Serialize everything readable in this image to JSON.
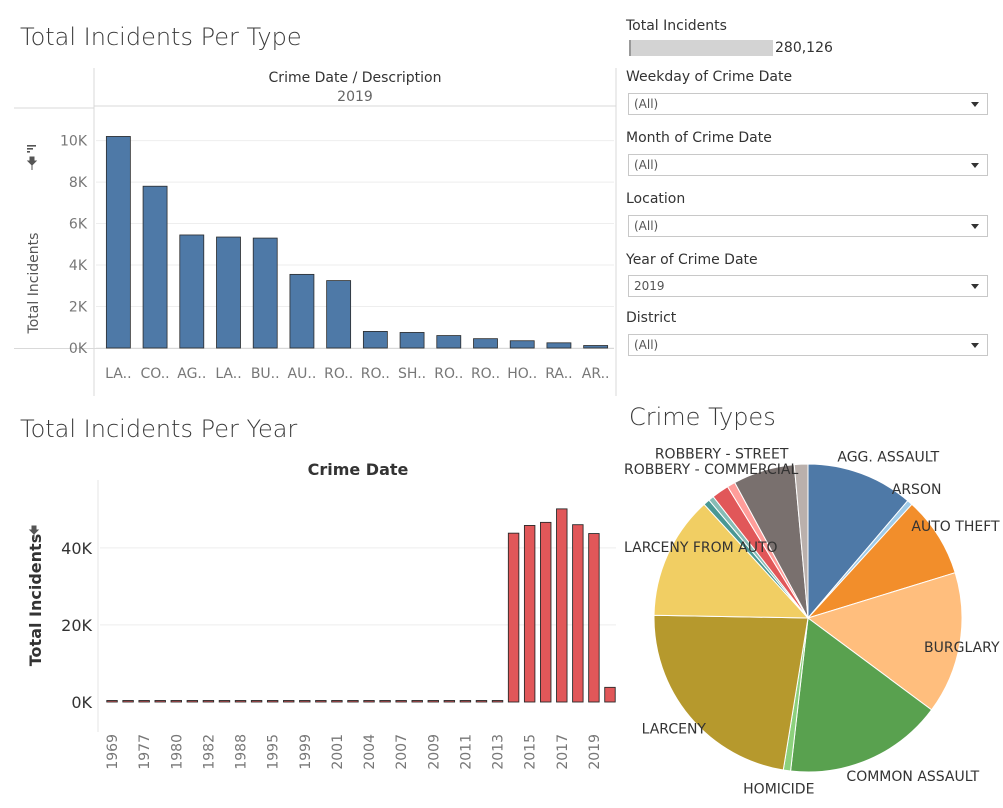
{
  "colors": {
    "bar_type": "#4e79a7",
    "bar_year": "#e15759",
    "slider_fill": "#d3d3d3"
  },
  "filters": {
    "total_incidents": {
      "label": "Total Incidents",
      "value": "280,126"
    },
    "items": [
      {
        "label": "Weekday of Crime Date",
        "value": "(All)"
      },
      {
        "label": "Month of Crime Date",
        "value": "(All)"
      },
      {
        "label": "Location",
        "value": "(All)"
      },
      {
        "label": "Year of Crime Date",
        "value": "2019"
      },
      {
        "label": "District",
        "value": "(All)"
      }
    ]
  },
  "chart_data": [
    {
      "id": "per_type",
      "type": "bar",
      "title": "Total Incidents Per Type",
      "header": "Crime Date  /  Description",
      "subheader": "2019",
      "ylabel": "Total Incidents",
      "ylim": [
        0,
        10800
      ],
      "ticks": [
        0,
        2000,
        4000,
        6000,
        8000,
        10000
      ],
      "tick_labels": [
        "0K",
        "2K",
        "4K",
        "6K",
        "8K",
        "10K"
      ],
      "grid": true,
      "categories": [
        "LA..",
        "CO..",
        "AG..",
        "LA..",
        "BU..",
        "AU..",
        "RO..",
        "RO..",
        "SH..",
        "RO..",
        "RO..",
        "HO..",
        "RA..",
        "AR.."
      ],
      "values": [
        10200,
        7800,
        5450,
        5350,
        5300,
        3550,
        3250,
        800,
        750,
        600,
        450,
        350,
        250,
        120
      ]
    },
    {
      "id": "per_year",
      "type": "bar",
      "title": "Total Incidents Per Year",
      "header": "Crime Date",
      "ylabel": "Total Incidents",
      "ylim": [
        0,
        55000
      ],
      "ticks": [
        0,
        20000,
        40000
      ],
      "tick_labels": [
        "0K",
        "20K",
        "40K"
      ],
      "grid": true,
      "x": [
        "1969",
        "1973",
        "1977",
        "1979",
        "1980",
        "1981",
        "1982",
        "1985",
        "1988",
        "1991",
        "1995",
        "1998",
        "1999",
        "2000",
        "2001",
        "2002",
        "2004",
        "2005",
        "2007",
        "2008",
        "2009",
        "2010",
        "2011",
        "2012",
        "2013",
        "2014",
        "2015",
        "2016",
        "2017",
        "2018",
        "2019",
        "2020"
      ],
      "x_tick_labels": [
        "1969",
        "1977",
        "1980",
        "1982",
        "1988",
        "1995",
        "1999",
        "2001",
        "2004",
        "2007",
        "2009",
        "2011",
        "2013",
        "2015",
        "2017",
        "2019"
      ],
      "values": [
        10,
        10,
        10,
        10,
        10,
        10,
        10,
        10,
        10,
        10,
        10,
        10,
        10,
        10,
        10,
        10,
        10,
        10,
        10,
        10,
        10,
        10,
        10,
        10,
        10,
        43800,
        45800,
        46600,
        50100,
        46000,
        43700,
        3800
      ]
    },
    {
      "id": "crime_types",
      "type": "pie",
      "title": "Crime Types",
      "slices": [
        {
          "label": "AGG. ASSAULT",
          "value": 11.8,
          "color": "#4e79a7"
        },
        {
          "label": "ARSON",
          "value": 0.6,
          "color": "#a0cbe8"
        },
        {
          "label": "AUTO THEFT",
          "value": 8.9,
          "color": "#f28e2b"
        },
        {
          "label": "BURGLARY",
          "value": 15.7,
          "color": "#ffbe7d"
        },
        {
          "label": "COMMON ASSAULT",
          "value": 17.5,
          "color": "#59a14f"
        },
        {
          "label": "HOMICIDE",
          "value": 0.8,
          "color": "#8cd17d"
        },
        {
          "label": "LARCENY",
          "value": 23.9,
          "color": "#b6992d"
        },
        {
          "label": "LARCENY FROM AUTO",
          "value": 13.6,
          "color": "#f1ce63"
        },
        {
          "label": "",
          "value": 0.7,
          "color": "#499894"
        },
        {
          "label": "",
          "value": 0.6,
          "color": "#86bcb6"
        },
        {
          "label": "",
          "value": 1.9,
          "color": "#e15759"
        },
        {
          "label": "ROBBERY - COMMERCIAL",
          "value": 0.9,
          "color": "#ff9d9a"
        },
        {
          "label": "ROBBERY - STREET",
          "value": 6.8,
          "color": "#79706e"
        },
        {
          "label": "",
          "value": 1.5,
          "color": "#bab0ac"
        }
      ]
    }
  ]
}
